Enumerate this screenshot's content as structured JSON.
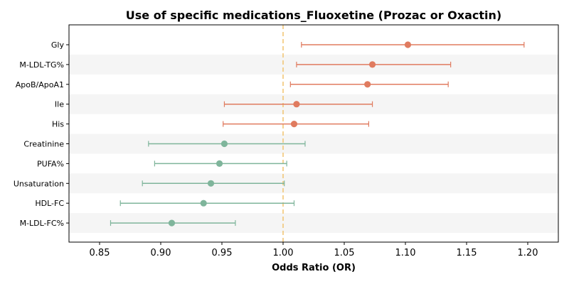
{
  "chart_data": {
    "type": "forest",
    "title": "Use of specific medications_Fluoxetine (Prozac or Oxactin)",
    "xlabel": "Odds Ratio (OR)",
    "ylabel": "",
    "xlim": [
      0.825,
      1.225
    ],
    "xticks": [
      "0.85",
      "0.90",
      "0.95",
      "1.00",
      "1.05",
      "1.10",
      "1.15",
      "1.20"
    ],
    "reference_line": 1.0,
    "reference_line_color": "#f2c46e",
    "row_shading": "#f5f5f5",
    "colors": {
      "positive": "#e07b5f",
      "negative": "#7fb59b"
    },
    "rows": [
      {
        "label": "Gly",
        "or": 1.102,
        "lower": 1.015,
        "upper": 1.197,
        "direction": "positive"
      },
      {
        "label": "M-LDL-TG%",
        "or": 1.073,
        "lower": 1.011,
        "upper": 1.137,
        "direction": "positive"
      },
      {
        "label": "ApoB/ApoA1",
        "or": 1.069,
        "lower": 1.006,
        "upper": 1.135,
        "direction": "positive"
      },
      {
        "label": "Ile",
        "or": 1.011,
        "lower": 0.952,
        "upper": 1.073,
        "direction": "positive"
      },
      {
        "label": "His",
        "or": 1.009,
        "lower": 0.951,
        "upper": 1.07,
        "direction": "positive"
      },
      {
        "label": "Creatinine",
        "or": 0.952,
        "lower": 0.89,
        "upper": 1.018,
        "direction": "negative"
      },
      {
        "label": "PUFA%",
        "or": 0.948,
        "lower": 0.895,
        "upper": 1.003,
        "direction": "negative"
      },
      {
        "label": "Unsaturation",
        "or": 0.941,
        "lower": 0.885,
        "upper": 1.001,
        "direction": "negative"
      },
      {
        "label": "HDL-FC",
        "or": 0.935,
        "lower": 0.867,
        "upper": 1.009,
        "direction": "negative"
      },
      {
        "label": "M-LDL-FC%",
        "or": 0.909,
        "lower": 0.859,
        "upper": 0.961,
        "direction": "negative"
      }
    ]
  }
}
